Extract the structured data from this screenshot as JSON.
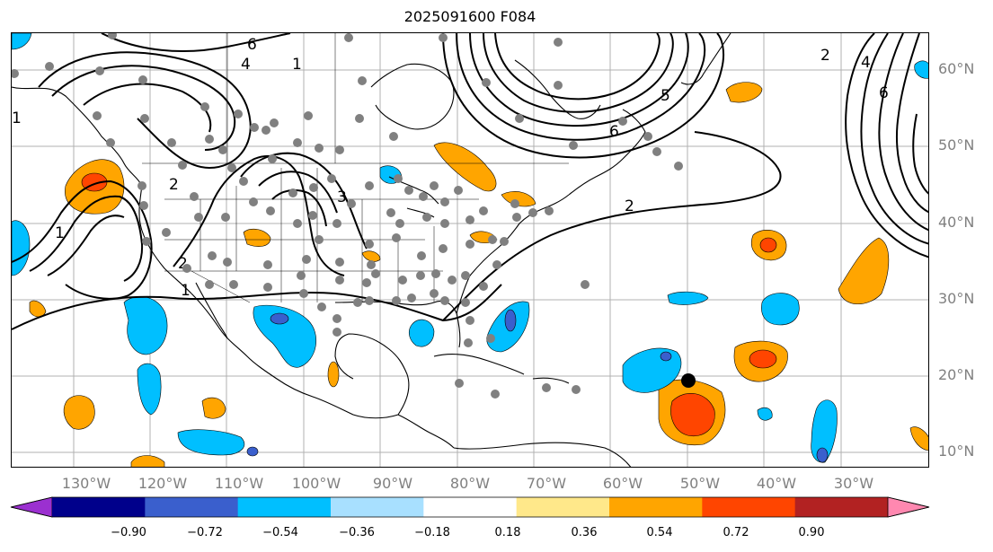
{
  "title": "2025091600 F084",
  "lat_labels": [
    "60°N",
    "50°N",
    "40°N",
    "30°N",
    "20°N",
    "10°N"
  ],
  "lon_labels": [
    "130°W",
    "120°W",
    "110°W",
    "100°W",
    "90°W",
    "80°W",
    "70°W",
    "60°W",
    "50°W",
    "40°W",
    "30°W"
  ],
  "contour_labels": {
    "c_alaska": "1",
    "c_pacific_1": "1",
    "c_pacific_2": "2",
    "c_baja": "1",
    "c_rockies": "2",
    "c_plains": "3",
    "c_hudson_5": "5",
    "c_hudson_6": "6",
    "c_atlantic": "2",
    "c_east_2": "2",
    "c_east_4": "4",
    "c_east_6": "6",
    "c_nw_4": "4",
    "c_nw_6": "6",
    "c_mx": "1"
  },
  "colorbar": {
    "ticks": [
      "−0.90",
      "−0.72",
      "−0.54",
      "−0.36",
      "−0.18",
      "0.18",
      "0.36",
      "0.54",
      "0.72",
      "0.90"
    ],
    "colors": [
      "#9b30d0",
      "#00008b",
      "#3a5fcd",
      "#00bfff",
      "#a8e0ff",
      "#ffffff",
      "#ffe88a",
      "#ffa500",
      "#ff4500",
      "#b22222",
      "#ff88b0"
    ]
  },
  "palette": {
    "land_line": "#000000",
    "grid": "#b0b0b0",
    "station_dot": "#808080",
    "storm_marker": "#000000",
    "label_gray": "#808080"
  }
}
